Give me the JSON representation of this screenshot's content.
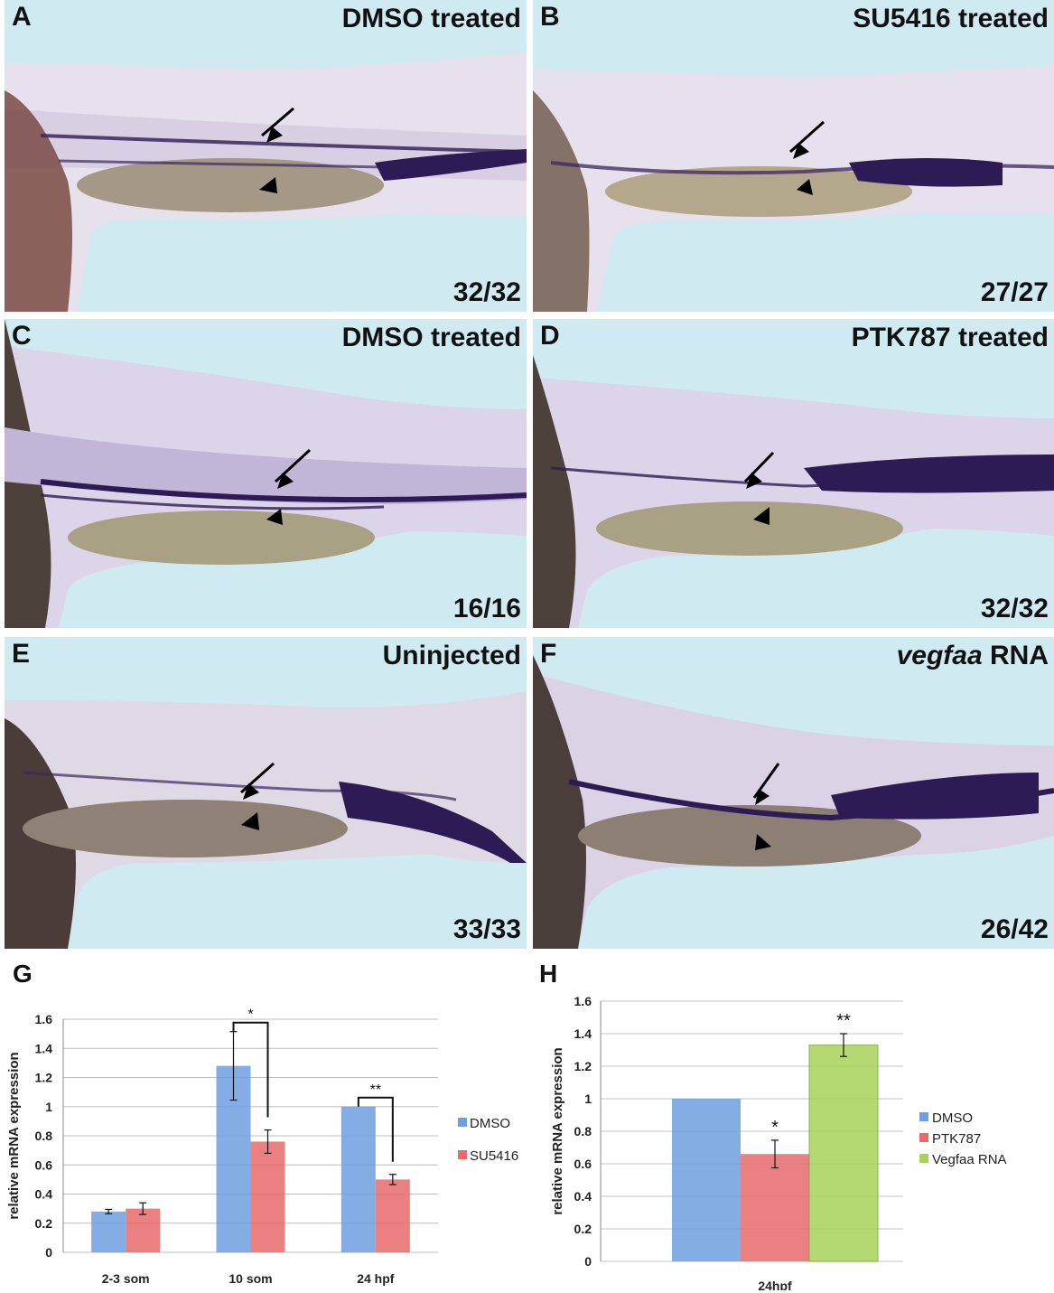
{
  "panels": [
    {
      "label": "A",
      "title": "DMSO treated",
      "count": "32/32"
    },
    {
      "label": "B",
      "title": "SU5416 treated",
      "count": "27/27"
    },
    {
      "label": "C",
      "title": "DMSO treated",
      "count": "16/16"
    },
    {
      "label": "D",
      "title": "PTK787 treated",
      "count": "32/32"
    },
    {
      "label": "E",
      "title": "Uninjected",
      "count": "33/33"
    },
    {
      "label": "F",
      "title_italic": "vegfaa",
      "title_rest": " RNA",
      "count": "26/42"
    }
  ],
  "chart_labels": {
    "g": "G",
    "h": "H"
  },
  "colors": {
    "background": "#cfeaf1",
    "dmso": "#6f9fe0",
    "treated": "#e86a6a",
    "vegfaa": "#a7d35a"
  },
  "chart_data": [
    {
      "type": "bar",
      "categories": [
        "2-3 som",
        "10 som",
        "24 hpf"
      ],
      "series": [
        {
          "name": "DMSO",
          "values": [
            0.28,
            1.28,
            1.0
          ],
          "errors": [
            0.015,
            0.235,
            0.0
          ]
        },
        {
          "name": "SU5416",
          "values": [
            0.3,
            0.76,
            0.5
          ],
          "errors": [
            0.04,
            0.08,
            0.035
          ]
        }
      ],
      "ylabel": "relative mRNA expression",
      "ylim": [
        0,
        1.6
      ],
      "yticks": [
        "0",
        "0.2",
        "0.4",
        "0.6",
        "0.8",
        "1",
        "1.2",
        "1.4",
        "1.6"
      ],
      "significance": [
        {
          "category": "10 som",
          "mark": "*"
        },
        {
          "category": "24 hpf",
          "mark": "**"
        }
      ],
      "grid": true,
      "legend": "right"
    },
    {
      "type": "bar",
      "categories": [
        "24hpf"
      ],
      "series": [
        {
          "name": "DMSO",
          "values": [
            1.0
          ],
          "errors": [
            0
          ]
        },
        {
          "name": "PTK787",
          "values": [
            0.66
          ],
          "errors": [
            0.085
          ],
          "mark": "*"
        },
        {
          "name": "Vegfaa RNA",
          "values": [
            1.33
          ],
          "errors": [
            0.07
          ],
          "mark": "**"
        }
      ],
      "ylabel": "relative mRNA expression",
      "ylim": [
        0,
        1.6
      ],
      "yticks": [
        "0",
        "0.2",
        "0.4",
        "0.6",
        "0.8",
        "1",
        "1.2",
        "1.4",
        "1.6"
      ],
      "grid": true,
      "legend": "right"
    }
  ]
}
